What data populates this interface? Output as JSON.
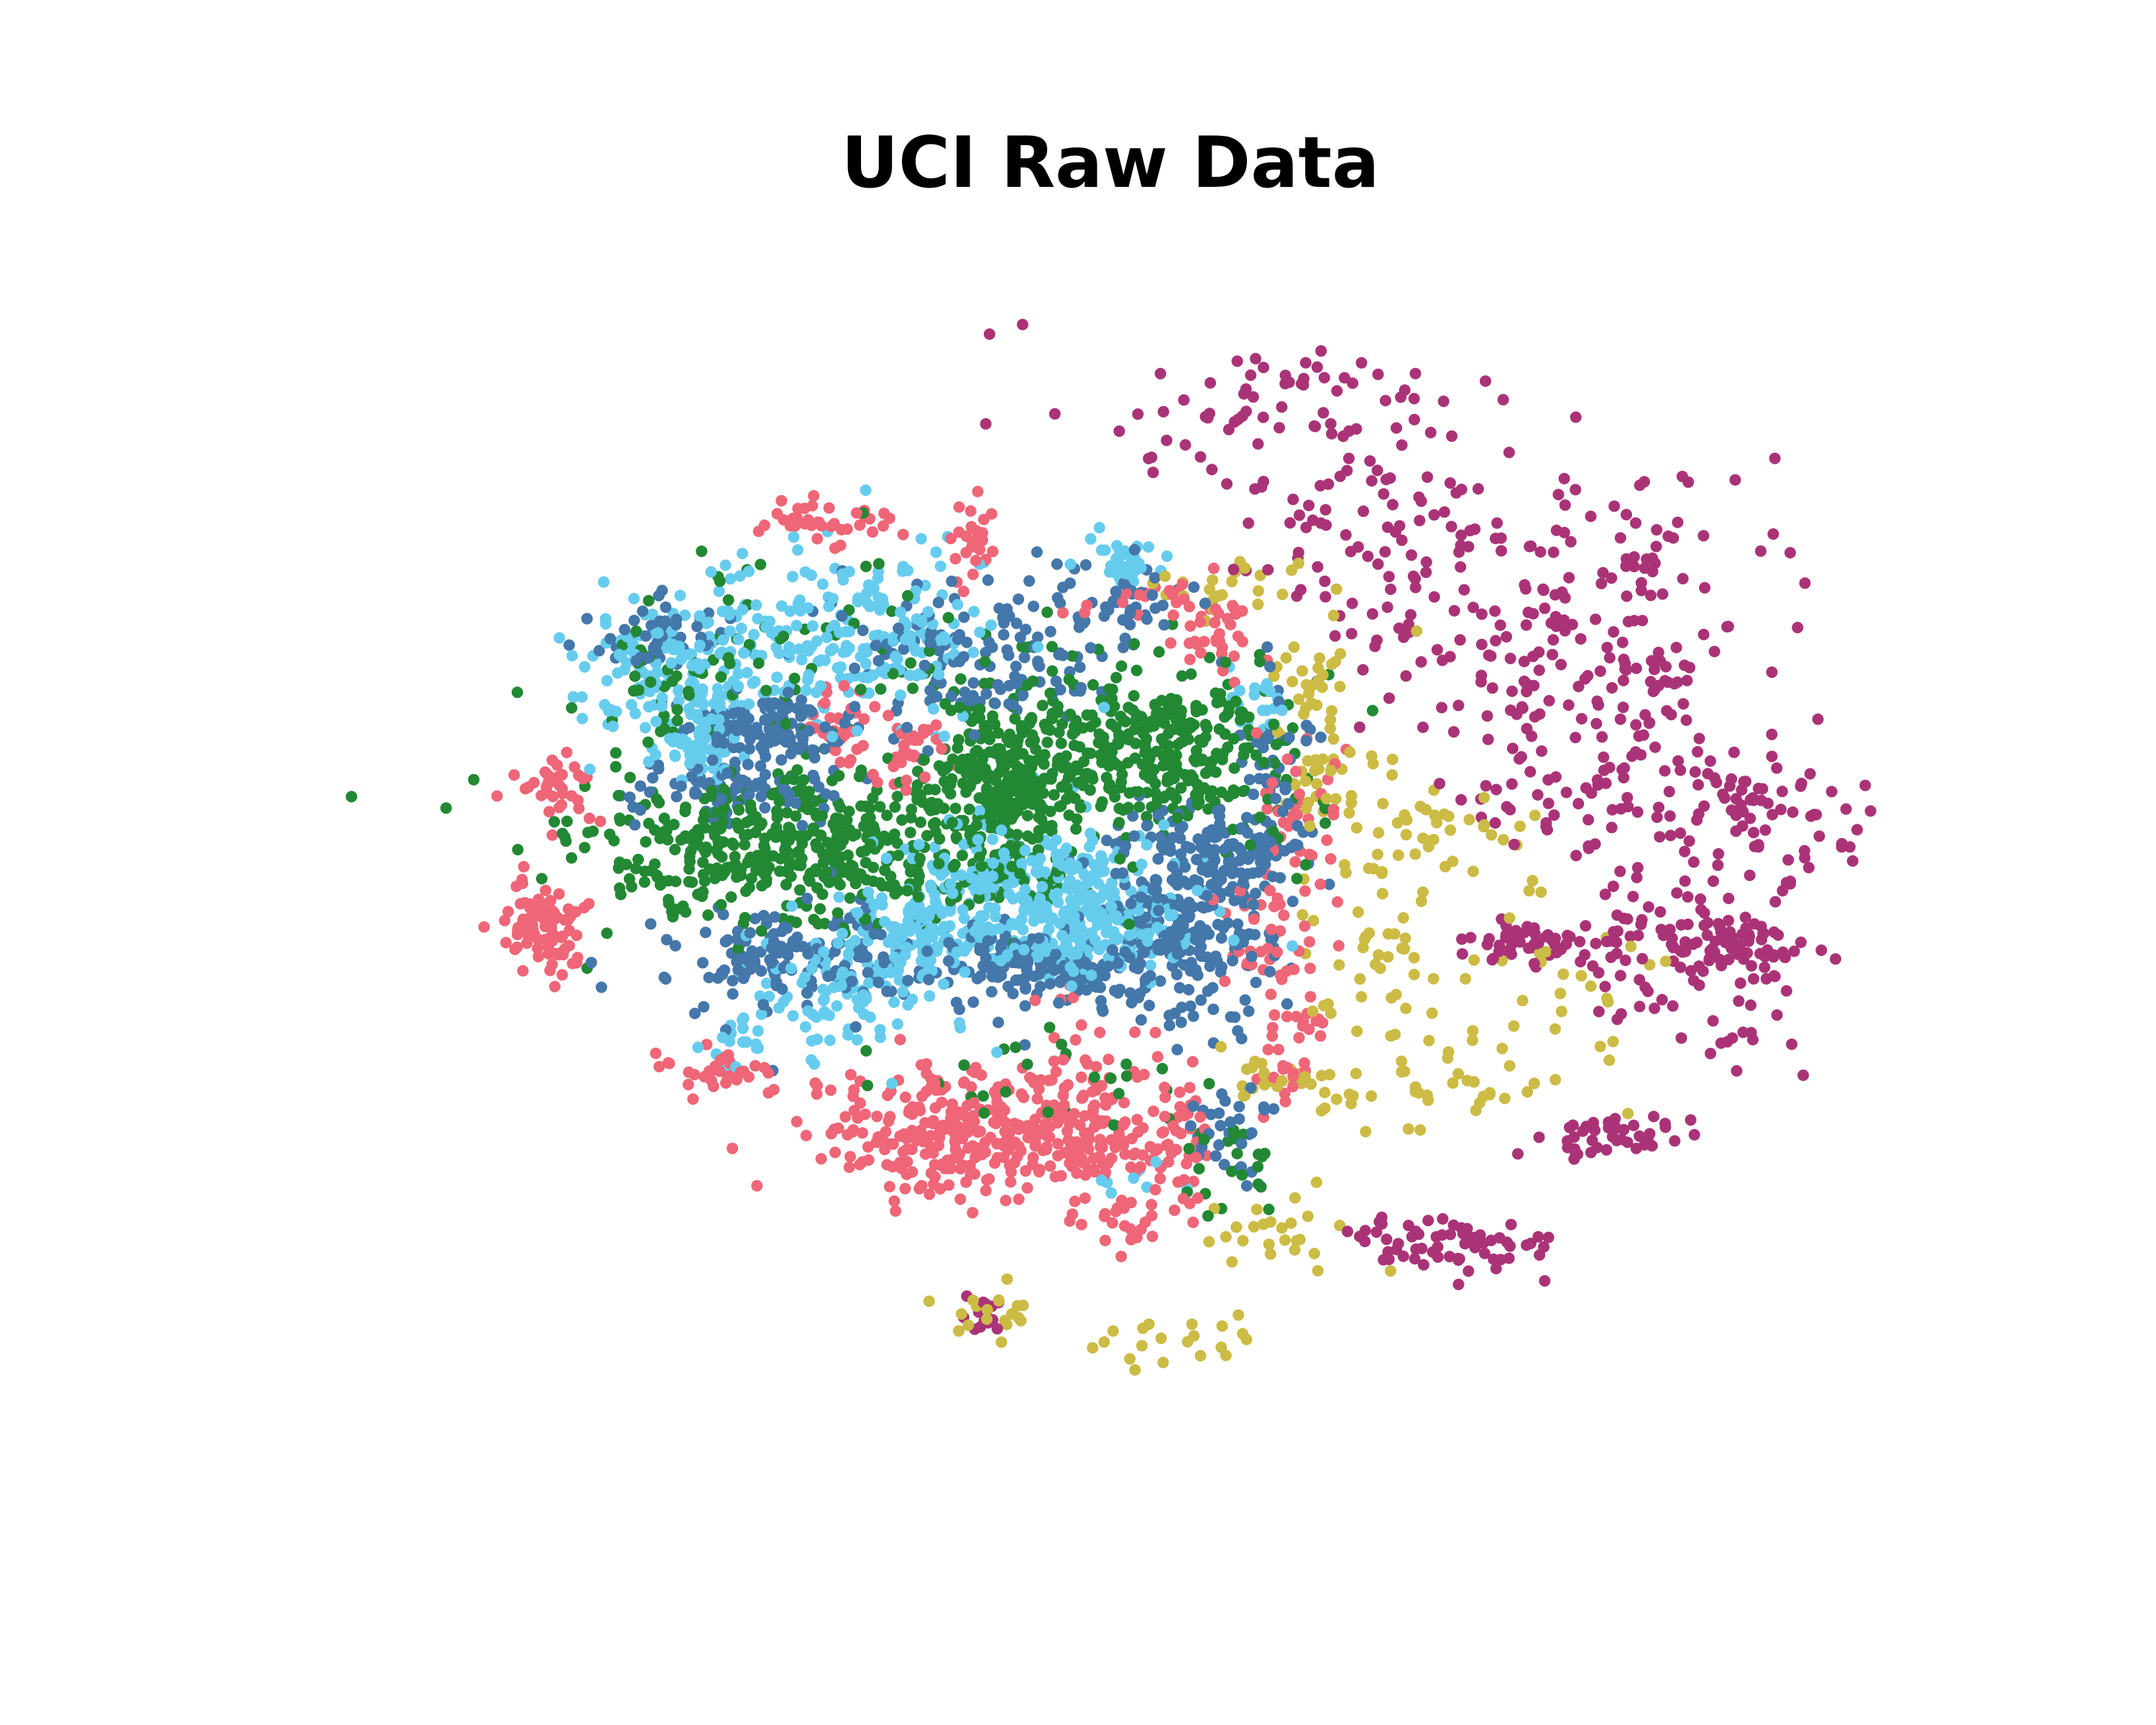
{
  "chart_data": {
    "type": "scatter",
    "title": "UCI Raw Data",
    "xlabel": "",
    "ylabel": "",
    "axes_visible": false,
    "grid": false,
    "legend": "none",
    "xlim": [
      -60,
      60
    ],
    "ylim": [
      -50,
      50
    ],
    "point_colors": [
      "#EE6677",
      "#4477AA",
      "#66CCEE",
      "#228833",
      "#CCBB44",
      "#AA3377"
    ],
    "series": [
      {
        "color": "#228833",
        "clusters": [
          {
            "cx": -23,
            "cy": 3,
            "sx": 9,
            "sy": 3,
            "n": 520
          },
          {
            "cx": -9,
            "cy": 9,
            "sx": 2.6,
            "sy": 3.2,
            "n": 230
          },
          {
            "cx": 3,
            "cy": 11,
            "sx": 5.5,
            "sy": 3.5,
            "n": 380
          },
          {
            "cx": -24,
            "cy": 19,
            "sx": 9,
            "sy": 5,
            "n": 70
          },
          {
            "cx": -35,
            "cy": 16,
            "sx": 2,
            "sy": 2,
            "n": 30
          },
          {
            "cx": 9,
            "cy": -21,
            "sx": 2,
            "sy": 2,
            "n": 25
          },
          {
            "cx": -5,
            "cy": -14,
            "sx": 6,
            "sy": 2,
            "n": 25
          }
        ]
      },
      {
        "color": "#4477AA",
        "clusters": [
          {
            "cx": -27,
            "cy": 13,
            "sx": 3,
            "sy": 1.2,
            "n": 110
          },
          {
            "cx": -29,
            "cy": 8,
            "sx": 4,
            "sy": 1.5,
            "n": 90
          },
          {
            "cx": -25,
            "cy": -5,
            "sx": 5,
            "sy": 2.2,
            "n": 150
          },
          {
            "cx": -5,
            "cy": -6,
            "sx": 5,
            "sy": 1.5,
            "n": 160
          },
          {
            "cx": 5,
            "cy": -3,
            "sx": 3.5,
            "sy": 3.5,
            "n": 220
          },
          {
            "cx": 8,
            "cy": 3,
            "sx": 3.5,
            "sy": 2,
            "n": 120
          },
          {
            "cx": -10,
            "cy": 18,
            "sx": 6,
            "sy": 3,
            "n": 140
          },
          {
            "cx": -35,
            "cy": 20,
            "sx": 3,
            "sy": 1.2,
            "n": 50
          },
          {
            "cx": 1,
            "cy": 23,
            "sx": 3,
            "sy": 1.5,
            "n": 40
          },
          {
            "cx": 9,
            "cy": -19,
            "sx": 2,
            "sy": 2,
            "n": 30
          },
          {
            "cx": 13,
            "cy": 10,
            "sx": 1.5,
            "sy": 3.5,
            "n": 40
          }
        ]
      },
      {
        "color": "#66CCEE",
        "clusters": [
          {
            "cx": -34,
            "cy": 17,
            "sx": 4,
            "sy": 3,
            "n": 160
          },
          {
            "cx": -21,
            "cy": 20,
            "sx": 6,
            "sy": 3,
            "n": 220
          },
          {
            "cx": -7,
            "cy": 1,
            "sx": 5,
            "sy": 2.5,
            "n": 180
          },
          {
            "cx": -2,
            "cy": -3,
            "sx": 4,
            "sy": 2,
            "n": 160
          },
          {
            "cx": -21,
            "cy": -8,
            "sx": 3.5,
            "sy": 2.5,
            "n": 110
          },
          {
            "cx": -13,
            "cy": -3,
            "sx": 3.5,
            "sy": 1.8,
            "n": 110
          },
          {
            "cx": -32,
            "cy": 11,
            "sx": 1.2,
            "sy": 1.2,
            "n": 40
          },
          {
            "cx": 1,
            "cy": 26,
            "sx": 1.2,
            "sy": 1.2,
            "n": 40
          },
          {
            "cx": 11,
            "cy": 15,
            "sx": 1.2,
            "sy": 1.2,
            "n": 20
          },
          {
            "cx": -30,
            "cy": -12,
            "sx": 2,
            "sy": 1,
            "n": 15
          },
          {
            "cx": 0,
            "cy": -22,
            "sx": 2,
            "sy": 1,
            "n": 10
          }
        ]
      },
      {
        "color": "#EE6677",
        "clusters": [
          {
            "cx": -11,
            "cy": -19,
            "sx": 6,
            "sy": 2.5,
            "n": 300
          },
          {
            "cx": -2,
            "cy": -17,
            "sx": 2.5,
            "sy": 4,
            "n": 110
          },
          {
            "cx": -44,
            "cy": -3,
            "sx": 1.5,
            "sy": 2,
            "n": 90
          },
          {
            "cx": -43,
            "cy": 8,
            "sx": 1.5,
            "sy": 1.5,
            "n": 35
          },
          {
            "cx": -16,
            "cy": 11,
            "sx": 1.5,
            "sy": 1.5,
            "n": 35
          },
          {
            "cx": -21,
            "cy": 13,
            "sx": 1.5,
            "sy": 1.5,
            "n": 35
          },
          {
            "cx": -22,
            "cy": 29,
            "sx": 3,
            "sy": 0.8,
            "n": 40
          },
          {
            "cx": -11,
            "cy": 27,
            "sx": 1,
            "sy": 2,
            "n": 25
          },
          {
            "cx": 3,
            "cy": 23,
            "sx": 3,
            "sy": 0.8,
            "n": 25
          },
          {
            "cx": 8,
            "cy": 20,
            "sx": 2,
            "sy": 1.5,
            "n": 30
          },
          {
            "cx": 14,
            "cy": 5,
            "sx": 2,
            "sy": 4,
            "n": 40
          },
          {
            "cx": 11,
            "cy": -4,
            "sx": 1.5,
            "sy": 2,
            "n": 25
          },
          {
            "cx": 14,
            "cy": -10,
            "sx": 1.5,
            "sy": 4,
            "n": 40
          },
          {
            "cx": 5,
            "cy": -20,
            "sx": 1,
            "sy": 3,
            "n": 40
          },
          {
            "cx": 1,
            "cy": -26,
            "sx": 1.2,
            "sy": 1.2,
            "n": 20
          },
          {
            "cx": -31,
            "cy": -14,
            "sx": 2.5,
            "sy": 0.8,
            "n": 35
          }
        ]
      },
      {
        "color": "#CCBB44",
        "clusters": [
          {
            "cx": 16,
            "cy": 12,
            "sx": 1.5,
            "sy": 4,
            "n": 45
          },
          {
            "cx": 21,
            "cy": -5,
            "sx": 3,
            "sy": 7,
            "n": 60
          },
          {
            "cx": 25,
            "cy": 5,
            "sx": 4,
            "sy": 2,
            "n": 30
          },
          {
            "cx": 14,
            "cy": -15,
            "sx": 3,
            "sy": 1.5,
            "n": 30
          },
          {
            "cx": 13,
            "cy": -27,
            "sx": 3,
            "sy": 1.5,
            "n": 25
          },
          {
            "cx": -10,
            "cy": -33,
            "sx": 2,
            "sy": 1,
            "n": 20
          },
          {
            "cx": 4,
            "cy": -35,
            "sx": 3,
            "sy": 0.8,
            "n": 20
          },
          {
            "cx": 8,
            "cy": 24,
            "sx": 3,
            "sy": 1,
            "n": 25
          },
          {
            "cx": 35,
            "cy": -8,
            "sx": 4,
            "sy": 5,
            "n": 30
          },
          {
            "cx": 26,
            "cy": -15,
            "sx": 3,
            "sy": 2,
            "n": 25
          },
          {
            "cx": 15,
            "cy": 17,
            "sx": 2,
            "sy": 1,
            "n": 15
          }
        ]
      },
      {
        "color": "#AA3377",
        "clusters": [
          {
            "cx": 12,
            "cy": 37,
            "sx": 8,
            "sy": 3,
            "n": 80
          },
          {
            "cx": 20,
            "cy": 28,
            "sx": 6,
            "sy": 3,
            "n": 70
          },
          {
            "cx": 28,
            "cy": 20,
            "sx": 6,
            "sy": 3,
            "n": 60
          },
          {
            "cx": 34,
            "cy": 10,
            "sx": 5,
            "sy": 3,
            "n": 60
          },
          {
            "cx": 40,
            "cy": 17,
            "sx": 5,
            "sy": 3,
            "n": 60
          },
          {
            "cx": 45,
            "cy": 7,
            "sx": 5,
            "sy": 4,
            "n": 60
          },
          {
            "cx": 52,
            "cy": 5,
            "sx": 4,
            "sy": 3,
            "n": 50
          },
          {
            "cx": 47,
            "cy": -4,
            "sx": 3,
            "sy": 1.5,
            "n": 70
          },
          {
            "cx": 32,
            "cy": -4,
            "sx": 3,
            "sy": 1,
            "n": 55
          },
          {
            "cx": 40,
            "cy": -4,
            "sx": 2,
            "sy": 3,
            "n": 40
          },
          {
            "cx": 38,
            "cy": -19,
            "sx": 3,
            "sy": 1,
            "n": 45
          },
          {
            "cx": 28,
            "cy": -28,
            "sx": 3,
            "sy": 1,
            "n": 40
          },
          {
            "cx": 40,
            "cy": 27,
            "sx": 6,
            "sy": 3,
            "n": 55
          },
          {
            "cx": 22,
            "cy": -27,
            "sx": 2,
            "sy": 1,
            "n": 25
          },
          {
            "cx": -10,
            "cy": -33,
            "sx": 1,
            "sy": 1,
            "n": 15
          },
          {
            "cx": 48,
            "cy": -8,
            "sx": 4,
            "sy": 4,
            "n": 30
          }
        ]
      }
    ]
  }
}
